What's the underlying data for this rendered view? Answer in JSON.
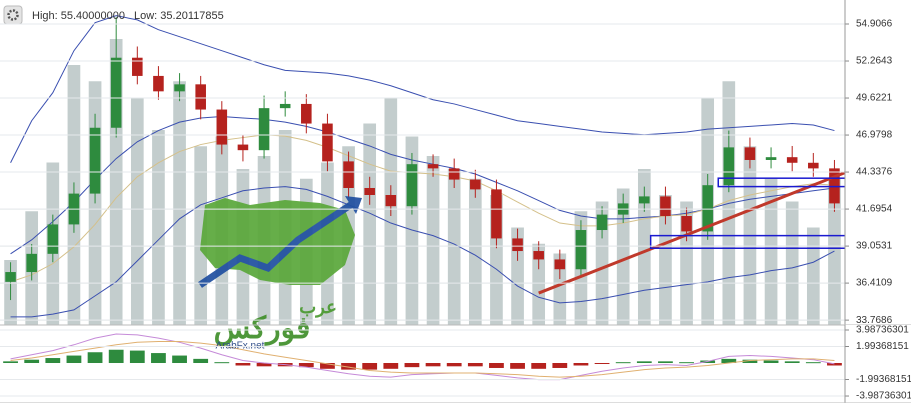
{
  "header": {
    "high": "High: 55.40000000",
    "low": "Low: 35.20117855"
  },
  "logo": {
    "arabic_top": "عرب",
    "arabic_main": "فوركس",
    "site": "ArabFx.net"
  },
  "chart_data": [
    {
      "type": "candlestick",
      "open": [
        36.5,
        37.2,
        38.5,
        40.6,
        42.8,
        47.5,
        52.5,
        51.2,
        50.1,
        50.6,
        48.8,
        46.3,
        45.9,
        48.9,
        49.2,
        47.8,
        45.1,
        43.2,
        42.7,
        41.9,
        44.9,
        44.6,
        43.8,
        43.1,
        39.6,
        38.7,
        38.1,
        37.4,
        40.2,
        41.3,
        42.1,
        42.6,
        41.2,
        40.1,
        43.4,
        46.1,
        45.2,
        45.4,
        45.0,
        44.6
      ],
      "high": [
        37.9,
        39.2,
        41.3,
        43.6,
        48.5,
        55.4,
        53.3,
        51.9,
        51.4,
        51.2,
        49.4,
        47.0,
        49.8,
        50.1,
        49.9,
        48.5,
        45.8,
        44.0,
        43.4,
        45.7,
        45.6,
        45.3,
        44.5,
        43.8,
        40.3,
        39.4,
        38.8,
        40.9,
        41.9,
        42.8,
        43.3,
        43.3,
        41.8,
        44.2,
        47.3,
        46.8,
        46.1,
        46.2,
        45.7,
        45.2
      ],
      "low": [
        35.2,
        36.6,
        37.9,
        40.0,
        42.1,
        46.8,
        50.6,
        49.5,
        49.4,
        48.1,
        45.6,
        45.1,
        45.3,
        48.3,
        47.1,
        44.4,
        42.5,
        42.0,
        41.2,
        41.3,
        44.0,
        43.2,
        42.5,
        38.9,
        38.0,
        37.4,
        36.7,
        36.9,
        39.6,
        40.7,
        41.5,
        40.6,
        39.4,
        39.5,
        42.9,
        44.6,
        44.6,
        44.4,
        44.0,
        41.5
      ],
      "close": [
        37.2,
        38.5,
        40.6,
        42.8,
        47.5,
        52.5,
        51.2,
        50.1,
        50.6,
        48.8,
        46.3,
        45.9,
        48.9,
        49.2,
        47.8,
        45.1,
        43.2,
        42.7,
        41.9,
        44.9,
        44.6,
        43.8,
        43.1,
        39.6,
        38.7,
        38.1,
        37.4,
        40.2,
        41.3,
        42.1,
        42.6,
        41.2,
        40.1,
        43.4,
        46.1,
        45.2,
        45.4,
        45.0,
        44.6,
        42.1
      ],
      "up_color": "#2e8b3e",
      "down_color": "#b5221e",
      "volume": [
        20,
        35,
        50,
        80,
        75,
        88,
        70,
        60,
        75,
        55,
        58,
        48,
        52,
        60,
        45,
        50,
        55,
        62,
        70,
        58,
        52,
        48,
        45,
        40,
        30,
        25,
        22,
        35,
        38,
        42,
        48,
        40,
        38,
        70,
        75,
        55,
        45,
        38,
        30,
        45
      ],
      "volume_lim": [
        0,
        100
      ],
      "volume_color": "#c3cdcd",
      "series": [
        {
          "color": "#3a4fb0",
          "values": [
            45,
            48,
            50,
            53,
            55,
            55.5,
            55.2,
            54.5,
            54,
            53.5,
            53,
            52.5,
            52,
            51.6,
            51.5,
            51.4,
            51.2,
            50.9,
            50.5,
            50.0,
            49.5,
            49.2,
            48.8,
            48.4,
            48,
            47.8,
            47.6,
            47.4,
            47.2,
            47.1,
            47.0,
            47.1,
            47.2,
            47.4,
            47.5,
            47.6,
            47.7,
            47.8,
            47.7,
            47.3
          ]
        },
        {
          "color": "#3a4fb0",
          "values": [
            38.5,
            39.5,
            40.8,
            42.2,
            43.8,
            45.3,
            46.5,
            47.3,
            47.9,
            48.2,
            48.3,
            48.2,
            48.1,
            47.9,
            47.6,
            47.2,
            46.7,
            46.2,
            45.6,
            45.2,
            44.9,
            44.6,
            44.2,
            43.6,
            43.0,
            42.3,
            41.6,
            41.2,
            41.0,
            41.0,
            41.1,
            41.2,
            41.4,
            41.7,
            42.1,
            42.4,
            42.6,
            42.8,
            43.0,
            43.2
          ]
        },
        {
          "color": "#3a4fb0",
          "values": [
            34,
            34,
            34.2,
            34.5,
            35.5,
            36.5,
            38,
            39.5,
            41,
            42,
            42.5,
            43,
            43.2,
            43.3,
            43.1,
            42.6,
            42.0,
            41.4,
            40.7,
            40.2,
            39.8,
            39.2,
            38.4,
            37.4,
            36.2,
            35.4,
            35.0,
            35.1,
            35.3,
            35.6,
            35.9,
            36.1,
            36.3,
            36.5,
            36.8,
            37.0,
            37.3,
            37.5,
            37.9,
            38.7
          ]
        },
        {
          "color": "#d4c08a",
          "values": [
            36.5,
            37,
            37.8,
            39,
            40.6,
            42.5,
            44,
            45,
            45.8,
            46.3,
            46.6,
            46.8,
            47,
            46.9,
            46.6,
            46.1,
            45.5,
            44.9,
            44.4,
            44.3,
            44.2,
            44.0,
            43.7,
            43.0,
            42.2,
            41.4,
            40.7,
            40.5,
            40.5,
            40.7,
            41.0,
            41.2,
            41.3,
            41.7,
            42.3,
            42.7,
            43.0,
            43.3,
            43.5,
            43.4
          ]
        }
      ],
      "trendline": {
        "from": [
          25,
          35.7
        ],
        "to": [
          39.5,
          44.3
        ],
        "color": "#c0392b"
      },
      "zones": [
        {
          "from": 33.5,
          "to": 40,
          "top": 43.9,
          "bottom": 43.3,
          "color": "#1a1ad0"
        },
        {
          "from": 30.3,
          "to": 40,
          "top": 39.8,
          "bottom": 38.9,
          "color": "#1a1ad0"
        }
      ],
      "ylim": [
        33.42,
        56.62
      ],
      "yticks": [
        33.7686,
        36.4109,
        39.0531,
        41.6954,
        44.3376,
        46.9798,
        49.6221,
        52.2643,
        54.9066
      ],
      "grid": true
    },
    {
      "type": "macd",
      "histogram": [
        0.2,
        0.4,
        0.6,
        0.9,
        1.3,
        1.6,
        1.5,
        1.2,
        0.9,
        0.5,
        0.1,
        -0.3,
        -0.4,
        -0.4,
        -0.5,
        -0.7,
        -0.8,
        -0.8,
        -0.7,
        -0.5,
        -0.4,
        -0.4,
        -0.4,
        -0.6,
        -0.7,
        -0.7,
        -0.6,
        -0.3,
        -0.1,
        0.1,
        0.2,
        0.2,
        0.1,
        0.3,
        0.5,
        0.4,
        0.3,
        0.2,
        0.1,
        -0.3
      ],
      "up_color": "#2e8b3e",
      "down_color": "#b5221e",
      "series": [
        {
          "color": "#c58ad8",
          "values": [
            0.5,
            1,
            1.5,
            2.2,
            3,
            3.5,
            3.4,
            3,
            2.5,
            1.8,
            1,
            0.3,
            0,
            -0.2,
            -0.5,
            -0.9,
            -1.3,
            -1.6,
            -1.7,
            -1.4,
            -1.3,
            -1.2,
            -1.2,
            -1.5,
            -1.8,
            -2,
            -2,
            -1.5,
            -1,
            -0.6,
            -0.3,
            -0.2,
            -0.3,
            0.2,
            0.8,
            0.9,
            0.8,
            0.6,
            0.4,
            -0.1
          ]
        },
        {
          "color": "#e0b070",
          "values": [
            0.3,
            0.6,
            1,
            1.4,
            1.8,
            2.2,
            2.5,
            2.6,
            2.6,
            2.4,
            2.1,
            1.6,
            1.1,
            0.7,
            0.3,
            -0.1,
            -0.5,
            -0.9,
            -1.1,
            -1.2,
            -1.2,
            -1.2,
            -1.2,
            -1.3,
            -1.4,
            -1.6,
            -1.7,
            -1.6,
            -1.4,
            -1.1,
            -0.8,
            -0.6,
            -0.5,
            -0.3,
            0,
            0.3,
            0.4,
            0.5,
            0.5,
            0.3
          ]
        }
      ],
      "ylim": [
        -4.83,
        4.59
      ],
      "yticks": [
        3.98736301,
        1.99368151,
        -1.99368151,
        -3.98736301
      ],
      "grid": true
    }
  ]
}
